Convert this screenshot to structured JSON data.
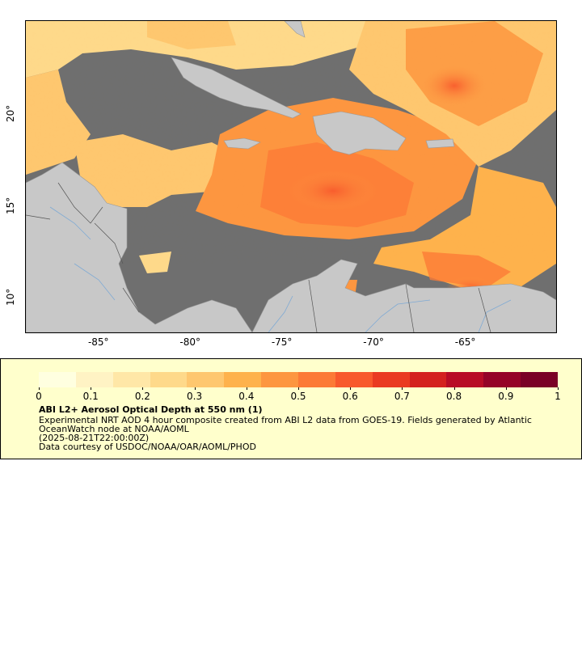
{
  "map": {
    "extent": {
      "lon_min": -89,
      "lon_max": -60,
      "lat_min": 8,
      "lat_max": 25
    },
    "lon_ticks": [
      "-85°",
      "-80°",
      "-75°",
      "-70°",
      "-65°"
    ],
    "lon_tick_values": [
      -85,
      -80,
      -75,
      -70,
      -65
    ],
    "lat_ticks": [
      "10°",
      "15°",
      "20°"
    ],
    "lat_tick_values": [
      10,
      15,
      20
    ],
    "colors": {
      "no_data": "#6f6f6f",
      "land": "#c8c8c8",
      "rivers": "#7faad4",
      "borders": "#808080"
    }
  },
  "legend": {
    "ticks": [
      "0",
      "0.1",
      "0.2",
      "0.3",
      "0.4",
      "0.5",
      "0.6",
      "0.7",
      "0.8",
      "0.9",
      "1"
    ],
    "colormap": [
      "#ffffe0",
      "#fff3c4",
      "#ffe7a7",
      "#fed98a",
      "#fec76f",
      "#feb24c",
      "#fd9640",
      "#fc7a36",
      "#f8592c",
      "#ea3a22",
      "#d4211f",
      "#b80c26",
      "#950328",
      "#7a0026"
    ],
    "title": "ABI L2+ Aerosol Optical Depth at 550 nm (1)",
    "line1": "Experimental NRT AOD 4 hour composite created from ABI L2 data from GOES-19. Fields generated by Atlantic",
    "line2": "OceanWatch node at NOAA/AOML",
    "line3": "(2025-08-21T22:00:00Z)",
    "line4": "Data courtesy of USDOC/NOAA/OAR/AOML/PHOD"
  }
}
